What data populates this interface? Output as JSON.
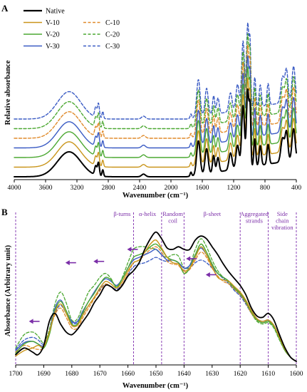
{
  "chart_data": [
    {
      "panel": "A",
      "type": "line",
      "xlabel": "Wavenumber (cm⁻¹)",
      "ylabel": "Relative absorbance",
      "x_reversed": true,
      "xlim": [
        4000,
        400
      ],
      "x_ticks": [
        4000,
        3600,
        3200,
        2800,
        2400,
        2000,
        1600,
        1200,
        800,
        400
      ],
      "y_ticks_shown": false,
      "legend": {
        "placement": "top-left",
        "columns": 2,
        "entries": [
          "Native",
          "V-10",
          "V-20",
          "V-30",
          "C-10",
          "C-20",
          "C-30"
        ]
      },
      "series": [
        {
          "name": "Native",
          "color": "#000000",
          "style": "solid",
          "offset": 0
        },
        {
          "name": "V-10",
          "color": "#c9951a",
          "style": "solid",
          "offset": 1
        },
        {
          "name": "V-20",
          "color": "#4ca832",
          "style": "solid",
          "offset": 2
        },
        {
          "name": "V-30",
          "color": "#3a5bc4",
          "style": "solid",
          "offset": 3
        },
        {
          "name": "C-10",
          "color": "#e08a2a",
          "style": "dashed",
          "offset": 4
        },
        {
          "name": "C-20",
          "color": "#4ca832",
          "style": "dashed",
          "offset": 5
        },
        {
          "name": "C-30",
          "color": "#3a5bc4",
          "style": "dashed",
          "offset": 6
        }
      ]
    },
    {
      "panel": "B",
      "type": "line",
      "xlabel": "Wavenumber (cm⁻¹)",
      "ylabel": "Absorbance (Arbitrary unit)",
      "x_reversed": true,
      "xlim": [
        1700,
        1600
      ],
      "x_ticks": [
        1700,
        1690,
        1680,
        1670,
        1660,
        1650,
        1640,
        1630,
        1620,
        1610,
        1600
      ],
      "y_ticks_shown": false,
      "bands": [
        {
          "label": "β-turns",
          "from": 1700,
          "to": 1658
        },
        {
          "label": "α-helix",
          "from": 1658,
          "to": 1648
        },
        {
          "label": "Random coil",
          "from": 1648,
          "to": 1640
        },
        {
          "label": "β-sheet",
          "from": 1640,
          "to": 1620
        },
        {
          "label": "Aggregated strands",
          "from": 1620,
          "to": 1610
        },
        {
          "label": "Side chain vibration",
          "from": 1610,
          "to": 1600
        }
      ],
      "shift_arrows": [
        {
          "x": 1693,
          "y": 0.3
        },
        {
          "x": 1680,
          "y": 0.74
        },
        {
          "x": 1670,
          "y": 0.75
        },
        {
          "x": 1658,
          "y": 0.84
        },
        {
          "x": 1637,
          "y": 0.77
        },
        {
          "x": 1630,
          "y": 0.65
        }
      ],
      "series": [
        {
          "name": "Native",
          "color": "#000000",
          "style": "solid",
          "width": 1.8,
          "x": [
            1700,
            1697,
            1694,
            1692,
            1690,
            1688,
            1686,
            1684,
            1682,
            1680,
            1678,
            1676,
            1674,
            1672,
            1670,
            1668,
            1666,
            1664,
            1662,
            1660,
            1658,
            1656,
            1654,
            1652,
            1650,
            1648,
            1646,
            1644,
            1642,
            1640,
            1638,
            1636,
            1634,
            1632,
            1630,
            1628,
            1626,
            1624,
            1622,
            1620,
            1618,
            1616,
            1614,
            1612,
            1610,
            1608,
            1606,
            1604,
            1602,
            1600
          ],
          "y": [
            0.05,
            0.1,
            0.07,
            0.05,
            0.12,
            0.3,
            0.36,
            0.28,
            0.22,
            0.2,
            0.24,
            0.3,
            0.36,
            0.44,
            0.5,
            0.57,
            0.56,
            0.53,
            0.57,
            0.64,
            0.68,
            0.74,
            0.84,
            0.92,
            0.97,
            0.92,
            0.85,
            0.84,
            0.86,
            0.84,
            0.84,
            0.91,
            0.94,
            0.92,
            0.86,
            0.8,
            0.73,
            0.67,
            0.62,
            0.57,
            0.5,
            0.4,
            0.34,
            0.33,
            0.36,
            0.31,
            0.2,
            0.1,
            0.03,
            0.0
          ]
        },
        {
          "name": "V-10",
          "color": "#c9951a",
          "style": "solid",
          "width": 1.4,
          "x": [
            1700,
            1697,
            1694,
            1692,
            1690,
            1688,
            1686,
            1684,
            1682,
            1680,
            1678,
            1676,
            1674,
            1672,
            1670,
            1668,
            1666,
            1664,
            1662,
            1660,
            1658,
            1656,
            1654,
            1652,
            1650,
            1648,
            1646,
            1644,
            1642,
            1640,
            1638,
            1636,
            1634,
            1632,
            1630,
            1628,
            1626,
            1624,
            1622,
            1620,
            1618,
            1616,
            1614,
            1612,
            1610,
            1608,
            1606,
            1604,
            1602,
            1600
          ],
          "y": [
            0.04,
            0.08,
            0.1,
            0.12,
            0.11,
            0.22,
            0.37,
            0.43,
            0.36,
            0.27,
            0.27,
            0.35,
            0.42,
            0.48,
            0.55,
            0.6,
            0.58,
            0.55,
            0.6,
            0.68,
            0.74,
            0.76,
            0.82,
            0.88,
            0.91,
            0.85,
            0.78,
            0.74,
            0.73,
            0.68,
            0.7,
            0.78,
            0.86,
            0.8,
            0.71,
            0.63,
            0.61,
            0.6,
            0.56,
            0.52,
            0.46,
            0.38,
            0.32,
            0.3,
            0.31,
            0.27,
            0.18,
            0.09,
            0.03,
            0.0
          ]
        },
        {
          "name": "V-20",
          "color": "#4ca832",
          "style": "solid",
          "width": 1.4,
          "x": [
            1700,
            1697,
            1694,
            1692,
            1690,
            1688,
            1686,
            1684,
            1682,
            1680,
            1678,
            1676,
            1674,
            1672,
            1670,
            1668,
            1666,
            1664,
            1662,
            1660,
            1658,
            1656,
            1654,
            1652,
            1650,
            1648,
            1646,
            1644,
            1642,
            1640,
            1638,
            1636,
            1634,
            1632,
            1630,
            1628,
            1626,
            1624,
            1622,
            1620,
            1618,
            1616,
            1614,
            1612,
            1610,
            1608,
            1606,
            1604,
            1602,
            1600
          ],
          "y": [
            0.06,
            0.13,
            0.15,
            0.13,
            0.1,
            0.2,
            0.38,
            0.45,
            0.38,
            0.28,
            0.28,
            0.37,
            0.45,
            0.51,
            0.58,
            0.63,
            0.61,
            0.56,
            0.62,
            0.7,
            0.78,
            0.8,
            0.82,
            0.86,
            0.88,
            0.84,
            0.78,
            0.76,
            0.74,
            0.66,
            0.7,
            0.8,
            0.88,
            0.82,
            0.73,
            0.66,
            0.63,
            0.6,
            0.55,
            0.51,
            0.45,
            0.37,
            0.31,
            0.29,
            0.3,
            0.26,
            0.17,
            0.08,
            0.03,
            0.0
          ]
        },
        {
          "name": "V-30",
          "color": "#3a5bc4",
          "style": "solid",
          "width": 1.4,
          "x": [
            1700,
            1697,
            1694,
            1692,
            1690,
            1688,
            1686,
            1684,
            1682,
            1680,
            1678,
            1676,
            1674,
            1672,
            1670,
            1668,
            1666,
            1664,
            1662,
            1660,
            1658,
            1656,
            1654,
            1652,
            1650,
            1648,
            1646,
            1644,
            1642,
            1640,
            1638,
            1636,
            1634,
            1632,
            1630,
            1628,
            1626,
            1624,
            1622,
            1620,
            1618,
            1616,
            1614,
            1612,
            1610,
            1608,
            1606,
            1604,
            1602,
            1600
          ],
          "y": [
            0.08,
            0.14,
            0.15,
            0.13,
            0.12,
            0.22,
            0.4,
            0.46,
            0.38,
            0.3,
            0.3,
            0.38,
            0.45,
            0.52,
            0.58,
            0.62,
            0.6,
            0.57,
            0.62,
            0.7,
            0.76,
            0.78,
            0.8,
            0.82,
            0.84,
            0.8,
            0.76,
            0.76,
            0.74,
            0.7,
            0.72,
            0.8,
            0.85,
            0.8,
            0.72,
            0.66,
            0.63,
            0.6,
            0.55,
            0.51,
            0.45,
            0.38,
            0.32,
            0.3,
            0.31,
            0.27,
            0.18,
            0.09,
            0.03,
            0.0
          ]
        },
        {
          "name": "C-10",
          "color": "#e08a2a",
          "style": "dashed",
          "width": 1.3,
          "x": [
            1700,
            1697,
            1694,
            1692,
            1690,
            1688,
            1686,
            1684,
            1682,
            1680,
            1678,
            1676,
            1674,
            1672,
            1670,
            1668,
            1666,
            1664,
            1662,
            1660,
            1658,
            1656,
            1654,
            1652,
            1650,
            1648,
            1646,
            1644,
            1642,
            1640,
            1638,
            1636,
            1634,
            1632,
            1630,
            1628,
            1626,
            1624,
            1622,
            1620,
            1618,
            1616,
            1614,
            1612,
            1610,
            1608,
            1606,
            1604,
            1602,
            1600
          ],
          "y": [
            0.07,
            0.12,
            0.1,
            0.09,
            0.1,
            0.22,
            0.35,
            0.4,
            0.33,
            0.25,
            0.25,
            0.33,
            0.4,
            0.47,
            0.53,
            0.58,
            0.56,
            0.53,
            0.58,
            0.66,
            0.74,
            0.76,
            0.8,
            0.84,
            0.86,
            0.82,
            0.75,
            0.73,
            0.72,
            0.67,
            0.69,
            0.76,
            0.82,
            0.78,
            0.7,
            0.64,
            0.6,
            0.58,
            0.54,
            0.5,
            0.44,
            0.36,
            0.31,
            0.29,
            0.3,
            0.26,
            0.17,
            0.08,
            0.03,
            0.0
          ]
        },
        {
          "name": "C-20",
          "color": "#4ca832",
          "style": "dashed",
          "width": 1.3,
          "x": [
            1700,
            1697,
            1694,
            1692,
            1690,
            1688,
            1686,
            1684,
            1682,
            1680,
            1678,
            1676,
            1674,
            1672,
            1670,
            1668,
            1666,
            1664,
            1662,
            1660,
            1658,
            1656,
            1654,
            1652,
            1650,
            1648,
            1646,
            1644,
            1642,
            1640,
            1638,
            1636,
            1634,
            1632,
            1630,
            1628,
            1626,
            1624,
            1622,
            1620,
            1618,
            1616,
            1614,
            1612,
            1610,
            1608,
            1606,
            1604,
            1602,
            1600
          ],
          "y": [
            0.1,
            0.2,
            0.22,
            0.19,
            0.14,
            0.24,
            0.43,
            0.52,
            0.44,
            0.31,
            0.32,
            0.42,
            0.52,
            0.57,
            0.63,
            0.66,
            0.62,
            0.55,
            0.63,
            0.74,
            0.84,
            0.86,
            0.86,
            0.85,
            0.84,
            0.8,
            0.78,
            0.8,
            0.79,
            0.7,
            0.72,
            0.84,
            0.92,
            0.86,
            0.76,
            0.68,
            0.63,
            0.59,
            0.54,
            0.5,
            0.44,
            0.36,
            0.3,
            0.28,
            0.29,
            0.25,
            0.16,
            0.08,
            0.03,
            0.0
          ]
        },
        {
          "name": "C-30",
          "color": "#3a5bc4",
          "style": "dashed",
          "width": 1.3,
          "x": [
            1700,
            1697,
            1694,
            1692,
            1690,
            1688,
            1686,
            1684,
            1682,
            1680,
            1678,
            1676,
            1674,
            1672,
            1670,
            1668,
            1666,
            1664,
            1662,
            1660,
            1658,
            1656,
            1654,
            1652,
            1650,
            1648,
            1646,
            1644,
            1642,
            1640,
            1638,
            1636,
            1634,
            1632,
            1630,
            1628,
            1626,
            1624,
            1622,
            1620,
            1618,
            1616,
            1614,
            1612,
            1610,
            1608,
            1606,
            1604,
            1602,
            1600
          ],
          "y": [
            0.09,
            0.16,
            0.18,
            0.16,
            0.13,
            0.22,
            0.36,
            0.42,
            0.36,
            0.29,
            0.29,
            0.36,
            0.42,
            0.48,
            0.54,
            0.58,
            0.56,
            0.54,
            0.58,
            0.65,
            0.71,
            0.73,
            0.74,
            0.76,
            0.78,
            0.76,
            0.75,
            0.76,
            0.74,
            0.7,
            0.7,
            0.74,
            0.76,
            0.74,
            0.7,
            0.66,
            0.62,
            0.58,
            0.53,
            0.49,
            0.43,
            0.36,
            0.31,
            0.29,
            0.3,
            0.26,
            0.17,
            0.08,
            0.03,
            0.0
          ]
        }
      ]
    }
  ]
}
